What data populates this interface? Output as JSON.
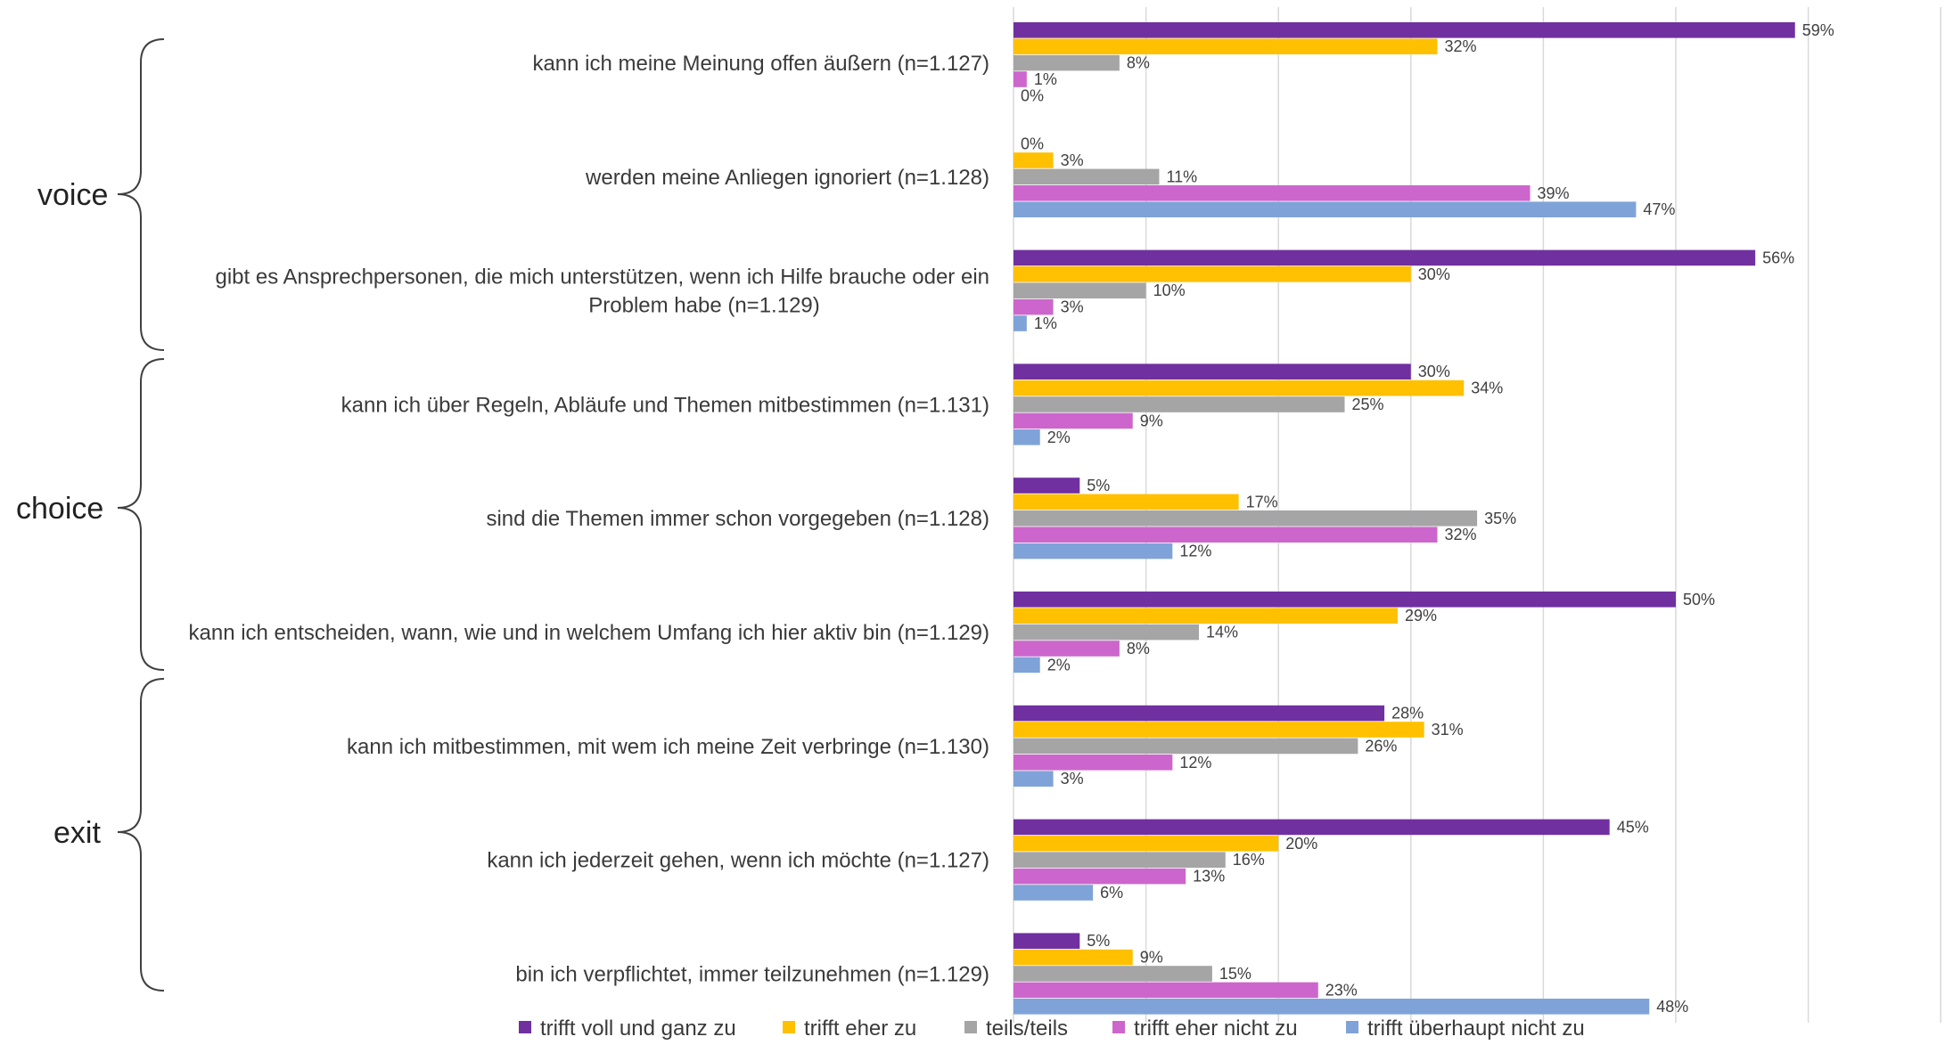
{
  "chart_data": {
    "type": "bar",
    "orientation": "horizontal",
    "grid": true,
    "legend_position": "bottom",
    "xlim": [
      0,
      70
    ],
    "value_suffix": "%",
    "groups": [
      {
        "name": "voice",
        "categories": [
          0,
          1,
          2
        ]
      },
      {
        "name": "choice",
        "categories": [
          3,
          4,
          5
        ]
      },
      {
        "name": "exit",
        "categories": [
          6,
          7,
          8
        ]
      }
    ],
    "categories": [
      [
        "kann ich meine Meinung offen äußern (n=1.127)"
      ],
      [
        "werden meine Anliegen ignoriert (n=1.128)"
      ],
      [
        "gibt es Ansprechpersonen, die mich unterstützen, wenn ich Hilfe brauche oder ein",
        "Problem habe (n=1.129)"
      ],
      [
        "kann ich über Regeln, Abläufe und Themen mitbestimmen (n=1.131)"
      ],
      [
        "sind die Themen immer schon vorgegeben (n=1.128)"
      ],
      [
        "kann ich entscheiden, wann, wie und in welchem Umfang ich hier aktiv bin (n=1.129)"
      ],
      [
        "kann ich mitbestimmen, mit wem ich meine Zeit verbringe (n=1.130)"
      ],
      [
        "kann ich jederzeit gehen, wenn ich möchte (n=1.127)"
      ],
      [
        "bin ich verpflichtet, immer teilzunehmen (n=1.129)"
      ]
    ],
    "series": [
      {
        "name": "trifft voll und ganz zu",
        "color": "#7030A0",
        "values": [
          59,
          0,
          56,
          30,
          5,
          50,
          28,
          45,
          5
        ]
      },
      {
        "name": "trifft eher zu",
        "color": "#FFC000",
        "values": [
          32,
          3,
          30,
          34,
          17,
          29,
          31,
          20,
          9
        ]
      },
      {
        "name": "teils/teils",
        "color": "#A5A5A5",
        "values": [
          8,
          11,
          10,
          25,
          35,
          14,
          26,
          16,
          15
        ]
      },
      {
        "name": "trifft eher nicht zu",
        "color": "#CC66CC",
        "values": [
          1,
          39,
          3,
          9,
          32,
          8,
          12,
          13,
          23
        ]
      },
      {
        "name": "trifft überhaupt nicht zu",
        "color": "#7FA3D8",
        "values": [
          0,
          47,
          1,
          2,
          12,
          2,
          3,
          6,
          48
        ]
      }
    ]
  }
}
